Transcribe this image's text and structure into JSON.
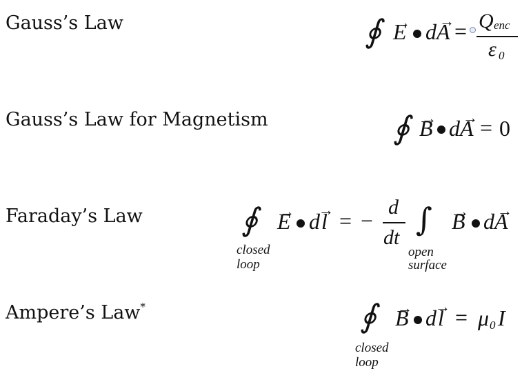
{
  "laws": [
    {
      "name": "Gauss’s Law",
      "equation": {
        "integral": "∮",
        "field": "E",
        "arrow": "→",
        "dot": "•",
        "d": "d",
        "element": "A",
        "equals": "=",
        "numerator_main": "Q",
        "numerator_sub": "enc",
        "denominator_main": "ε",
        "denominator_sub": "0"
      }
    },
    {
      "name": "Gauss’s Law for Magnetism",
      "equation": {
        "integral": "∮",
        "field": "B",
        "arrow": "→",
        "dot": "•",
        "d": "d",
        "element": "A",
        "equals": "=",
        "rhs": "0"
      }
    },
    {
      "name": "Faraday’s Law",
      "equation": {
        "integral": "∮",
        "integral_label_1": "closed",
        "integral_label_2": "loop",
        "field": "E",
        "arrow": "→",
        "dot": "•",
        "d": "d",
        "element": "l",
        "equals": "=",
        "minus": "−",
        "frac_num": "d",
        "frac_den": "dt",
        "integral2": "∫",
        "integral2_label_1": "open",
        "integral2_label_2": "surface",
        "field2": "B",
        "element2": "A"
      }
    },
    {
      "name": "Ampere’s Law",
      "name_mark": "*",
      "equation": {
        "integral": "∮",
        "integral_label_1": "closed",
        "integral_label_2": "loop",
        "field": "B",
        "arrow": "→",
        "dot": "•",
        "d": "d",
        "element": "l",
        "equals": "=",
        "rhs_main": "μ",
        "rhs_sub": "0",
        "rhs_tail": "I"
      }
    }
  ]
}
